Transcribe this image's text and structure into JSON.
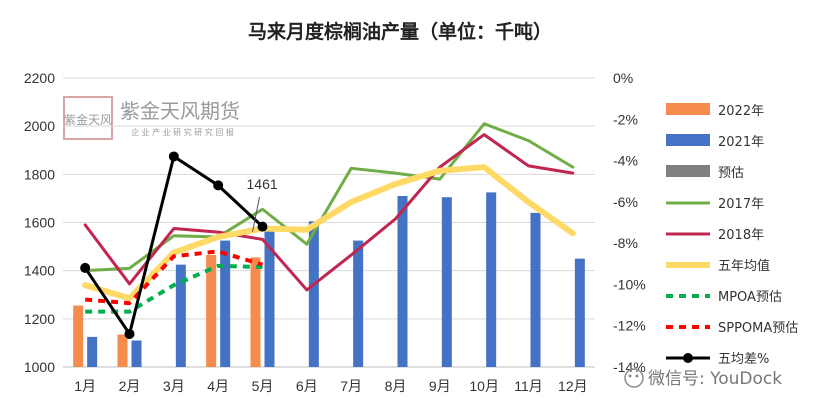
{
  "chart_data": {
    "type": "bar",
    "title": "马来月度棕榈油产量（单位：千吨）",
    "categories": [
      "1月",
      "2月",
      "3月",
      "4月",
      "5月",
      "6月",
      "7月",
      "8月",
      "9月",
      "10月",
      "11月",
      "12月"
    ],
    "ylim": [
      1000,
      2200
    ],
    "yticks": [
      "1000",
      "1200",
      "1400",
      "1600",
      "1800",
      "2000",
      "2200"
    ],
    "y2lim": [
      -14,
      0
    ],
    "y2ticks": [
      "0%",
      "-2%",
      "-4%",
      "-6%",
      "-8%",
      "-10%",
      "-12%",
      "-14%"
    ],
    "bar_series": [
      {
        "name": "2022年",
        "color": "#F58B4C",
        "values": [
          1255,
          1135,
          null,
          1465,
          1455,
          null,
          null,
          null,
          null,
          null,
          null,
          null
        ]
      },
      {
        "name": "2021年",
        "color": "#4472C4",
        "values": [
          1125,
          1110,
          1425,
          1525,
          1565,
          1605,
          1525,
          1710,
          1705,
          1725,
          1640,
          1450
        ]
      },
      {
        "name": "预估",
        "color": "#7F7F7F",
        "values": [
          null,
          null,
          null,
          null,
          null,
          null,
          null,
          null,
          null,
          null,
          null,
          null
        ]
      }
    ],
    "line_series": [
      {
        "name": "2017年",
        "color": "#70AD47",
        "style": "solid",
        "width": 3,
        "values": [
          1400,
          1410,
          1545,
          1540,
          1655,
          1510,
          1825,
          1805,
          1780,
          2010,
          1940,
          1830
        ]
      },
      {
        "name": "2018年",
        "color": "#C0264F",
        "style": "solid",
        "width": 3,
        "values": [
          1590,
          1345,
          1575,
          1560,
          1530,
          1320,
          1465,
          1615,
          1830,
          1965,
          1835,
          1805
        ]
      },
      {
        "name": "五年均值",
        "color": "#FFD966",
        "style": "solid",
        "width": 6,
        "values": [
          1340,
          1285,
          1475,
          1540,
          1575,
          1570,
          1685,
          1760,
          1815,
          1830,
          1685,
          1555
        ]
      },
      {
        "name": "MPOA预估",
        "color": "#00B050",
        "style": "dashed",
        "width": 4,
        "values": [
          1230,
          1230,
          1340,
          1420,
          1415,
          null,
          null,
          null,
          null,
          null,
          null,
          null
        ]
      },
      {
        "name": "SPPOMA预估",
        "color": "#FF0000",
        "style": "dashed",
        "width": 4,
        "values": [
          1280,
          1265,
          1460,
          1480,
          1425,
          null,
          null,
          null,
          null,
          null,
          null,
          null
        ]
      }
    ],
    "pct_series": {
      "name": "五均差%",
      "color": "#000000",
      "axis": "right",
      "values": [
        -9.2,
        -12.4,
        -3.8,
        -5.2,
        -7.2,
        null,
        null,
        null,
        null,
        null,
        null,
        null
      ]
    },
    "annotation": {
      "text": "1461",
      "month": "5月"
    },
    "legend": [
      "2022年",
      "2021年",
      "预估",
      "2017年",
      "2018年",
      "五年均值",
      "MPOA预估",
      "SPPOMA预估",
      "五均差%"
    ],
    "legend_position": "right",
    "grid": true
  },
  "watermark": {
    "brand": "紫金天风期货",
    "tagline": "企 业 产 业 研 究 研 究 回 报",
    "seal": "紫金天风",
    "source": "微信号: YouDock"
  }
}
